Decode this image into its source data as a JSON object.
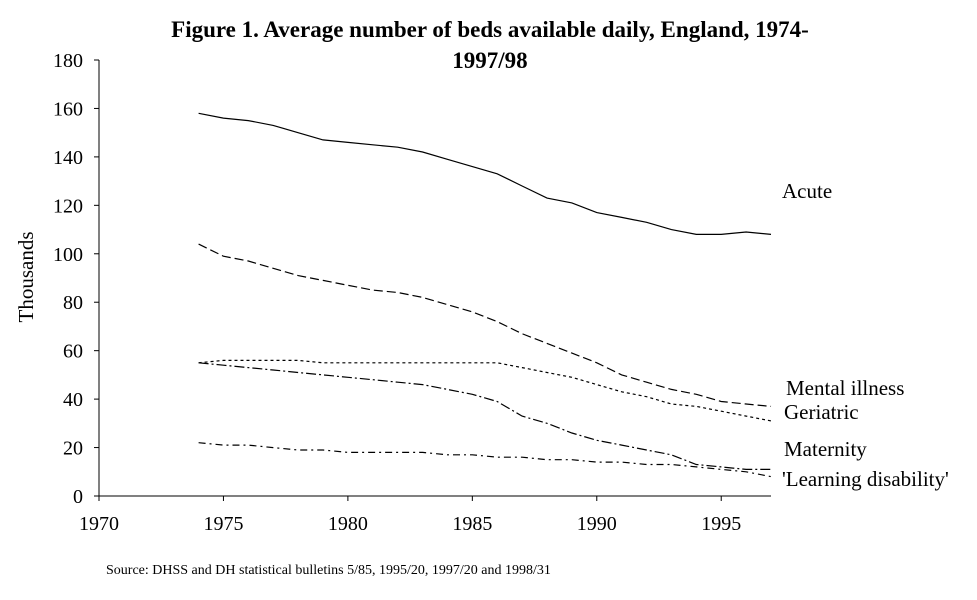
{
  "chart_data": {
    "type": "line",
    "title_lines": [
      "Figure 1. Average number of beds available daily, England, 1974-",
      "1997/98"
    ],
    "ylabel": "Thousands",
    "xlabel": "",
    "xlim": [
      1970,
      1997
    ],
    "ylim": [
      0,
      180
    ],
    "xticks": [
      "1970",
      "1975",
      "1980",
      "1985",
      "1990",
      "1995"
    ],
    "yticks": [
      "0",
      "20",
      "40",
      "60",
      "80",
      "100",
      "120",
      "140",
      "160",
      "180"
    ],
    "grid": false,
    "legend": "direct labels at line ends",
    "x": [
      1974,
      1975,
      1976,
      1977,
      1978,
      1979,
      1980,
      1981,
      1982,
      1983,
      1984,
      1985,
      1986,
      1987,
      1988,
      1989,
      1990,
      1991,
      1992,
      1993,
      1994,
      1995,
      1996,
      1997
    ],
    "series": [
      {
        "name": "Acute",
        "style": "solid",
        "values": [
          158,
          156,
          155,
          153,
          150,
          147,
          146,
          145,
          144,
          142,
          139,
          136,
          133,
          128,
          123,
          121,
          117,
          115,
          113,
          110,
          108,
          108,
          109,
          108
        ]
      },
      {
        "name": "Mental illness",
        "style": "dashed",
        "values": [
          104,
          99,
          97,
          94,
          91,
          89,
          87,
          85,
          84,
          82,
          79,
          76,
          72,
          67,
          63,
          59,
          55,
          50,
          47,
          44,
          42,
          39,
          38,
          37
        ]
      },
      {
        "name": "Geriatric",
        "style": "dotted",
        "values": [
          55,
          56,
          56,
          56,
          56,
          55,
          55,
          55,
          55,
          55,
          55,
          55,
          55,
          53,
          51,
          49,
          46,
          43,
          41,
          38,
          37,
          35,
          33,
          31
        ]
      },
      {
        "name": "Maternity",
        "style": "dash-dot",
        "values": [
          55,
          54,
          53,
          52,
          51,
          50,
          49,
          48,
          47,
          46,
          44,
          42,
          39,
          33,
          30,
          26,
          23,
          21,
          19,
          17,
          13,
          12,
          11,
          11
        ]
      },
      {
        "name": "'Learning disability'",
        "style": "dash-dot-long",
        "values": [
          22,
          21,
          21,
          20,
          19,
          19,
          18,
          18,
          18,
          18,
          17,
          17,
          16,
          16,
          15,
          15,
          14,
          14,
          13,
          13,
          12,
          11,
          10,
          8
        ]
      }
    ],
    "source": "Source: DHSS and DH statistical bulletins 5/85, 1995/20, 1997/20 and 1998/31"
  }
}
